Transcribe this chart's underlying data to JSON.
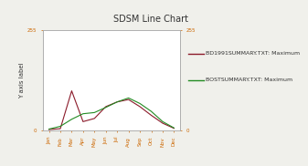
{
  "title": "SDSM Line Chart",
  "ylabel": "Y axis label",
  "categories": [
    "Jan",
    "Feb",
    "Mar",
    "Apr",
    "May",
    "Jun",
    "Jul",
    "Aug",
    "Sep",
    "Oct",
    "Nov",
    "Dec"
  ],
  "series1_label": "BD1991SUMMARY.TXT: Maximum",
  "series1_color": "#8B1A2A",
  "series1_values": [
    2,
    4,
    100,
    22,
    30,
    60,
    72,
    78,
    60,
    38,
    18,
    5
  ],
  "series2_label": "BOSTSUMMARY.TXT: Maximum",
  "series2_color": "#228B22",
  "series2_values": [
    3,
    10,
    28,
    42,
    45,
    58,
    72,
    82,
    68,
    48,
    22,
    6
  ],
  "ylim": [
    0,
    255
  ],
  "yticks_left": [
    0,
    255
  ],
  "yticks_right": [
    0,
    255
  ],
  "background_color": "#f0f0eb",
  "plot_bg_color": "#ffffff",
  "title_fontsize": 7,
  "label_fontsize": 5,
  "tick_fontsize": 4,
  "legend_fontsize": 4.5,
  "title_color": "#333333",
  "axis_color": "#aaaaaa",
  "tick_label_color": "#cc6600"
}
